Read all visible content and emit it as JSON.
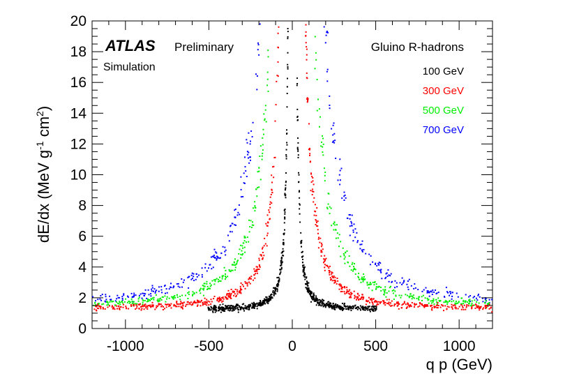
{
  "chart_data": {
    "type": "scatter",
    "title": "",
    "xlabel": "q p (GeV)",
    "ylabel": "dE/dx (MeV g⁻¹ cm²)",
    "ylabel_parts": {
      "pre": "dE/dx (MeV g",
      "sup1": "-1",
      "mid": " cm",
      "sup2": "2",
      "post": ")"
    },
    "xlim": [
      -1200,
      1200
    ],
    "ylim": [
      0,
      20
    ],
    "x_ticks": [
      -1000,
      -500,
      0,
      500,
      1000
    ],
    "x_tick_labels": [
      "-1000",
      "-500",
      "0",
      "500",
      "1000"
    ],
    "y_ticks": [
      0,
      2,
      4,
      6,
      8,
      10,
      12,
      14,
      16,
      18,
      20
    ],
    "y_tick_labels": [
      "0",
      "2",
      "4",
      "6",
      "8",
      "10",
      "12",
      "14",
      "16",
      "18",
      "20"
    ],
    "grid": false,
    "legend_position": "top-right",
    "experiment_label": "ATLAS",
    "status_label": "Preliminary",
    "sample_label": "Simulation",
    "legend_title": "Gluino R-hadrons",
    "series": [
      {
        "name": "100 GeV",
        "mass_gev": 100,
        "color": "#000000",
        "plateau_dedx": 1.25,
        "typical_points": [
          [
            -100,
            3.5
          ],
          [
            -50,
            8.0
          ],
          [
            -200,
            1.8
          ],
          [
            -400,
            1.4
          ],
          [
            80,
            4.5
          ],
          [
            150,
            2.4
          ],
          [
            300,
            1.6
          ]
        ]
      },
      {
        "name": "300 GeV",
        "mass_gev": 300,
        "color": "#ff0000",
        "plateau_dedx": 1.3,
        "typical_points": [
          [
            -150,
            8.0
          ],
          [
            -250,
            3.5
          ],
          [
            -500,
            1.8
          ],
          [
            -1000,
            1.4
          ],
          [
            150,
            8.0
          ],
          [
            300,
            3.0
          ],
          [
            800,
            1.5
          ]
        ]
      },
      {
        "name": "500 GeV",
        "mass_gev": 500,
        "color": "#00ee00",
        "plateau_dedx": 1.35,
        "typical_points": [
          [
            -200,
            10.0
          ],
          [
            -350,
            5.0
          ],
          [
            -600,
            2.5
          ],
          [
            -1100,
            1.5
          ],
          [
            200,
            9.0
          ],
          [
            450,
            3.5
          ],
          [
            1000,
            1.6
          ]
        ]
      },
      {
        "name": "700 GeV",
        "mass_gev": 700,
        "color": "#0000ff",
        "plateau_dedx": 1.4,
        "typical_points": [
          [
            -250,
            12.0
          ],
          [
            -450,
            6.0
          ],
          [
            -800,
            2.8
          ],
          [
            -1150,
            1.7
          ],
          [
            250,
            11.0
          ],
          [
            600,
            4.0
          ],
          [
            1100,
            1.8
          ]
        ]
      }
    ]
  }
}
